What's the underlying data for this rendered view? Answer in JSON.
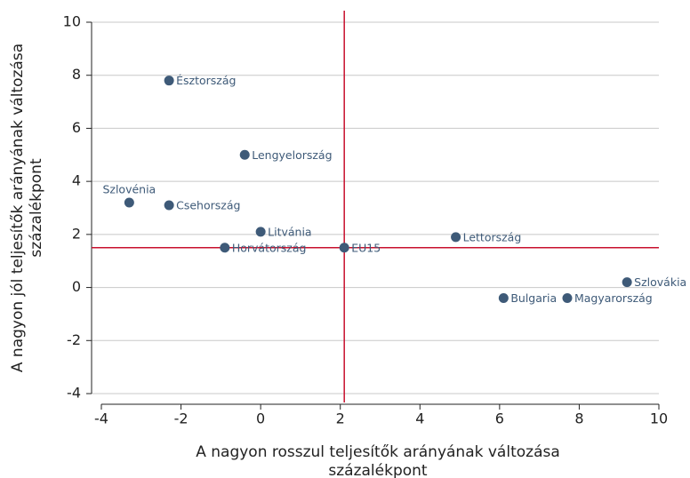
{
  "chart_data": {
    "type": "scatter",
    "points": [
      {
        "label": "Észtország",
        "x": -2.3,
        "y": 7.8
      },
      {
        "label": "Lengyelország",
        "x": -0.4,
        "y": 5.0
      },
      {
        "label": "Szlovénia",
        "x": -3.3,
        "y": 3.2
      },
      {
        "label": "Csehország",
        "x": -2.3,
        "y": 3.1
      },
      {
        "label": "Litvánia",
        "x": 0.0,
        "y": 2.1
      },
      {
        "label": "Horvátország",
        "x": -0.9,
        "y": 1.5
      },
      {
        "label": "EU15",
        "x": 2.1,
        "y": 1.5
      },
      {
        "label": "Lettország",
        "x": 4.9,
        "y": 1.9
      },
      {
        "label": "Szlovákia",
        "x": 9.2,
        "y": 0.2
      },
      {
        "label": "Bulgaria",
        "x": 6.1,
        "y": -0.4
      },
      {
        "label": "Magyarország",
        "x": 7.7,
        "y": -0.4
      }
    ],
    "color": "#3e5a78",
    "reference_x": 2.1,
    "reference_y": 1.5,
    "reference_color": "#c8102e",
    "xlim": [
      -4,
      10
    ],
    "xticks": [
      -4,
      -2,
      0,
      2,
      4,
      6,
      8,
      10
    ],
    "ylim": [
      -4,
      10
    ],
    "yticks": [
      -4,
      -2,
      0,
      2,
      4,
      6,
      8,
      10
    ],
    "grid": true,
    "xlabel": [
      "A nagyon rosszul teljesítők arányának változása",
      "százalékpont"
    ],
    "ylabel": [
      "A nagyon jól teljesítők arányának változása",
      "százalékpont"
    ]
  }
}
